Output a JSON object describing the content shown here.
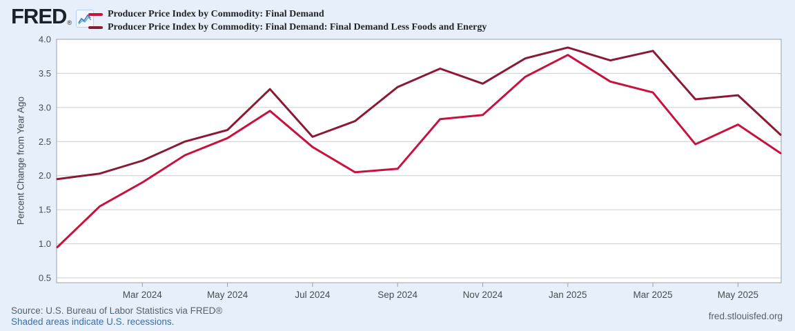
{
  "header": {
    "logo": "FRED",
    "registered": "®"
  },
  "legend": [
    {
      "label": "Producer Price Index by Commodity: Final Demand",
      "color": "#c9113f"
    },
    {
      "label": "Producer Price Index by Commodity: Final Demand: Final Demand Less Foods and Energy",
      "color": "#8a1a33"
    }
  ],
  "chart_data": {
    "type": "line",
    "x": [
      "Jan 2024",
      "Feb 2024",
      "Mar 2024",
      "Apr 2024",
      "May 2024",
      "Jun 2024",
      "Jul 2024",
      "Aug 2024",
      "Sep 2024",
      "Oct 2024",
      "Nov 2024",
      "Dec 2024",
      "Jan 2025",
      "Feb 2025",
      "Mar 2025",
      "Apr 2025",
      "May 2025",
      "Jun 2025"
    ],
    "series": [
      {
        "name": "Producer Price Index by Commodity: Final Demand",
        "color": "#c9113f",
        "values": [
          0.95,
          1.55,
          1.9,
          2.3,
          2.55,
          2.95,
          2.42,
          2.05,
          2.1,
          2.83,
          2.89,
          3.45,
          3.77,
          3.38,
          3.22,
          2.46,
          2.75,
          2.33
        ]
      },
      {
        "name": "Producer Price Index by Commodity: Final Demand: Final Demand Less Foods and Energy",
        "color": "#8a1a33",
        "values": [
          1.95,
          2.03,
          2.22,
          2.5,
          2.67,
          3.27,
          2.57,
          2.8,
          3.3,
          3.57,
          3.35,
          3.72,
          3.88,
          3.69,
          3.83,
          3.12,
          3.18,
          2.6
        ]
      }
    ],
    "ylabel": "Percent Change from Year Ago",
    "xlabel": "",
    "title": "",
    "ylim": [
      0.5,
      4.0
    ],
    "yticks": [
      0.5,
      1.0,
      1.5,
      2.0,
      2.5,
      3.0,
      3.5,
      4.0
    ],
    "xticks": [
      {
        "label": "Mar 2024",
        "index": 2
      },
      {
        "label": "May 2024",
        "index": 4
      },
      {
        "label": "Jul 2024",
        "index": 6
      },
      {
        "label": "Sep 2024",
        "index": 8
      },
      {
        "label": "Nov 2024",
        "index": 10
      },
      {
        "label": "Jan 2025",
        "index": 12
      },
      {
        "label": "Mar 2025",
        "index": 14
      },
      {
        "label": "May 2025",
        "index": 16
      }
    ],
    "grid": true,
    "legend_position": "top-left",
    "plot_bg": "#ffffff",
    "page_bg": "#e7f0fa",
    "grid_color": "#c9cdd1",
    "box_color": "#9aa0a6",
    "tick_label_color": "#454c52"
  },
  "footer": {
    "source": "Source: U.S. Bureau of Labor Statistics via FRED®",
    "recessions_note": "Shaded areas indicate U.S. recessions.",
    "site": "fred.stlouisfed.org"
  }
}
